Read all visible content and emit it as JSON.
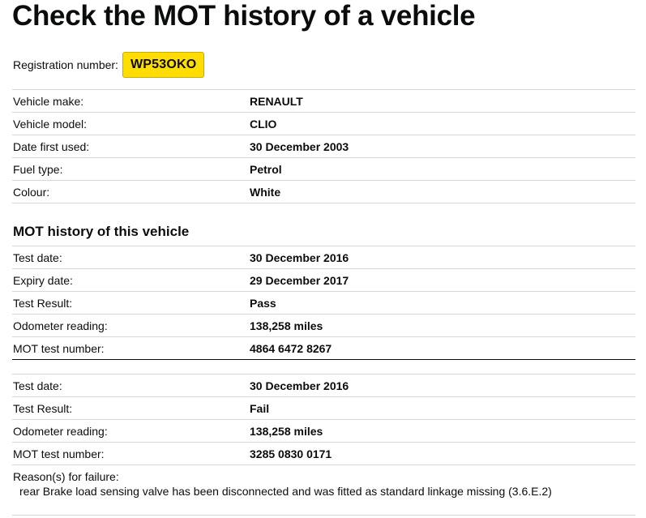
{
  "page": {
    "title": "Check the MOT history of a vehicle"
  },
  "registration": {
    "label": "Registration number:",
    "plate": "WP53OKO"
  },
  "vehicle_details": {
    "rows": [
      {
        "label": "Vehicle make:",
        "value": "RENAULT"
      },
      {
        "label": "Vehicle model:",
        "value": "CLIO"
      },
      {
        "label": "Date first used:",
        "value": "30 December 2003"
      },
      {
        "label": "Fuel type:",
        "value": "Petrol"
      },
      {
        "label": "Colour:",
        "value": "White"
      }
    ]
  },
  "mot_history": {
    "heading": "MOT history of this vehicle",
    "tests": [
      {
        "rows": [
          {
            "label": "Test date:",
            "value": "30 December 2016"
          },
          {
            "label": "Expiry date:",
            "value": "29 December 2017"
          },
          {
            "label": "Test Result:",
            "value": "Pass"
          },
          {
            "label": "Odometer reading:",
            "value": "138,258 miles"
          },
          {
            "label": "MOT test number:",
            "value": "4864 6472 8267"
          }
        ]
      },
      {
        "rows": [
          {
            "label": "Test date:",
            "value": "30 December 2016"
          },
          {
            "label": "Test Result:",
            "value": "Fail"
          },
          {
            "label": "Odometer reading:",
            "value": "138,258 miles"
          },
          {
            "label": "MOT test number:",
            "value": "3285 0830 0171"
          }
        ],
        "reasons_label": "Reason(s) for failure:",
        "reasons": [
          "rear Brake load sensing valve has been disconnected and was fitted as standard linkage missing (3.6.E.2)"
        ]
      }
    ]
  },
  "colors": {
    "plate_background": "#ffdd00",
    "text": "#0b0c0c",
    "divider": "#d7d7d7"
  }
}
